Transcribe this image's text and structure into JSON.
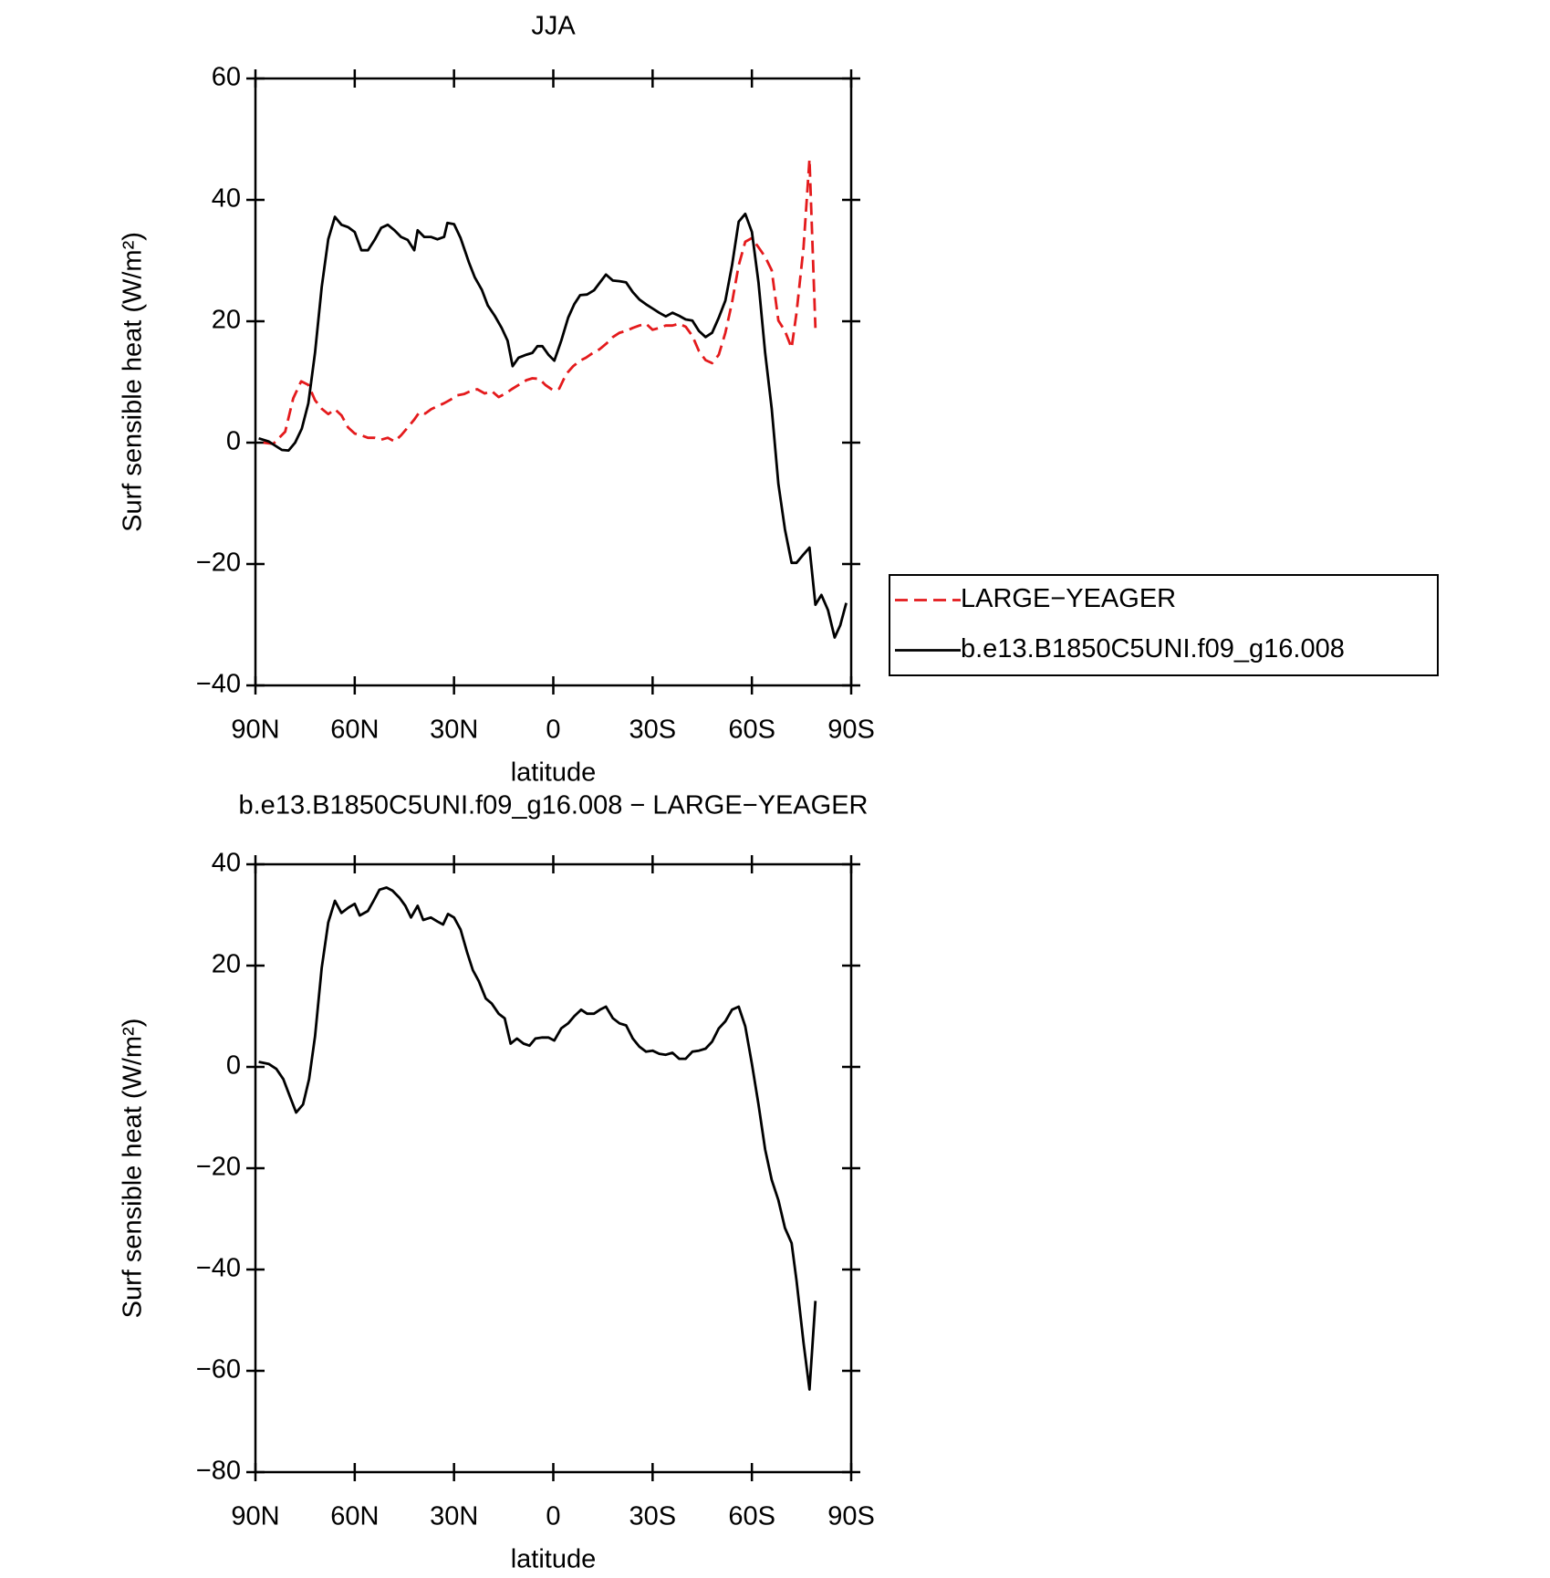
{
  "chart_data": [
    {
      "type": "line",
      "title": "JJA",
      "xlabel": "latitude",
      "ylabel": "Surf sensible heat (W/m²)",
      "xlim": [
        90,
        -90
      ],
      "xticks": [
        {
          "value": 90,
          "label": "90N"
        },
        {
          "value": 60,
          "label": "60N"
        },
        {
          "value": 30,
          "label": "30N"
        },
        0,
        {
          "value": -30,
          "label": "30S"
        },
        {
          "value": -60,
          "label": "60S"
        },
        {
          "value": -90,
          "label": "90S"
        }
      ],
      "ylim": [
        -40,
        60
      ],
      "yticks": [
        {
          "value": -40,
          "label": "−40"
        },
        {
          "value": -20,
          "label": "−20"
        },
        0,
        20,
        40,
        60
      ],
      "legend": "right",
      "series": [
        {
          "name": "LARGE−YEAGER",
          "color": "#e41a1c",
          "line_style": "dashed",
          "x": [
            87.6,
            84.6,
            81,
            78.6,
            76.2,
            74,
            72,
            70,
            68,
            66,
            64,
            62,
            60,
            58,
            56,
            54,
            52,
            50,
            48,
            46,
            44,
            42,
            40.5,
            38.7,
            36.9,
            35,
            33,
            31,
            29,
            27,
            25,
            23,
            20.7,
            18.6,
            16.5,
            14.4,
            12.6,
            10.5,
            8.1,
            6.3,
            4.2,
            2.4,
            0,
            -1.8,
            -3.9,
            -6,
            -8.1,
            -9.9,
            -12,
            -14,
            -16,
            -18,
            -20,
            -22,
            -24,
            -26,
            -28,
            -30,
            -32,
            -34,
            -36,
            -38,
            -40,
            -42,
            -44,
            -46,
            -48,
            -50,
            -52,
            -54,
            -56,
            -58,
            -60,
            -62,
            -64,
            -66,
            -68,
            -70,
            -72,
            -73.5,
            -75.6,
            -77.4,
            -79.2
          ],
          "values": [
            0,
            -0.2,
            1.8,
            7.3,
            10.1,
            9.5,
            7,
            5.6,
            4.7,
            5.5,
            4.5,
            2.5,
            1.5,
            1.2,
            0.8,
            0.8,
            0.5,
            0.8,
            0.2,
            1.2,
            2.5,
            3.8,
            5,
            4.8,
            5.5,
            6,
            6.5,
            7.1,
            7.8,
            8,
            8.5,
            8.8,
            8.1,
            8.5,
            7.5,
            8.1,
            8.8,
            9.5,
            10.3,
            10.6,
            10.5,
            9.5,
            8.6,
            8.9,
            11.3,
            12.6,
            13.5,
            14,
            14.8,
            15.4,
            16.3,
            17.4,
            18.1,
            18.4,
            18.9,
            19.3,
            19.6,
            18.6,
            18.9,
            19.3,
            19.3,
            19.6,
            19.1,
            17.6,
            15.1,
            13.6,
            13.1,
            14.5,
            18.1,
            23.1,
            29.2,
            33.1,
            33.7,
            32.2,
            30.6,
            28.4,
            20.1,
            18.4,
            15.6,
            21.4,
            32.2,
            46.7,
            18.9
          ]
        },
        {
          "name": "b.e13.B1850C5UNI.f09_g16.008",
          "color": "#000000",
          "line_style": "solid",
          "x": [
            89,
            86,
            82,
            80,
            78,
            76,
            74,
            72,
            70,
            68,
            66,
            64,
            62,
            60,
            58,
            56,
            54,
            52,
            50,
            48,
            46,
            44,
            42,
            41,
            39,
            37,
            35,
            33,
            32,
            30,
            28,
            25.5,
            23.7,
            21.6,
            19.8,
            17.7,
            15.6,
            13.8,
            12.3,
            10.5,
            8.1,
            6.3,
            4.8,
            3.3,
            1.5,
            -0.3,
            -2.4,
            -4.5,
            -6.3,
            -8.1,
            -10.2,
            -12.3,
            -14.1,
            -15.9,
            -18,
            -20,
            -22,
            -24,
            -26,
            -28,
            -30,
            -32,
            -34,
            -36,
            -38,
            -40,
            -42,
            -44,
            -46,
            -48,
            -50,
            -52,
            -54,
            -56,
            -58,
            -60,
            -62,
            -64,
            -66,
            -68,
            -70,
            -72,
            -73.5,
            -75.6,
            -77.4,
            -79.2,
            -81,
            -83,
            -85,
            -86.7,
            -88.5
          ],
          "values": [
            0.7,
            0.2,
            -1.2,
            -1.3,
            0,
            2.3,
            6.5,
            14.8,
            25.6,
            33.5,
            37.2,
            35.9,
            35.5,
            34.7,
            31.7,
            31.7,
            33.4,
            35.4,
            35.9,
            35,
            33.9,
            33.4,
            31.7,
            35,
            33.9,
            33.9,
            33.5,
            33.9,
            36.2,
            36,
            33.7,
            29.7,
            27.2,
            25.2,
            22.6,
            20.9,
            18.9,
            16.8,
            12.6,
            14,
            14.5,
            14.8,
            15.9,
            15.9,
            14.5,
            13.5,
            16.8,
            20.6,
            22.8,
            24.3,
            24.4,
            25.1,
            26.4,
            27.7,
            26.7,
            26.6,
            26.4,
            24.8,
            23.6,
            22.8,
            22.1,
            21.4,
            20.8,
            21.4,
            20.9,
            20.3,
            20.1,
            18.4,
            17.4,
            18.1,
            20.6,
            23.4,
            29.2,
            36.4,
            37.7,
            34.7,
            26.4,
            14.8,
            5.6,
            -6.8,
            -14.3,
            -19.8,
            -19.8,
            -18.4,
            -17.3,
            -26.7,
            -25.1,
            -27.6,
            -32.1,
            -30.1,
            -26.4
          ]
        }
      ]
    },
    {
      "type": "line",
      "title": "b.e13.B1850C5UNI.f09_g16.008 − LARGE−YEAGER",
      "xlabel": "latitude",
      "ylabel": "Surf sensible heat (W/m²)",
      "xlim": [
        90,
        -90
      ],
      "xticks": [
        {
          "value": 90,
          "label": "90N"
        },
        {
          "value": 60,
          "label": "60N"
        },
        {
          "value": 30,
          "label": "30N"
        },
        0,
        {
          "value": -30,
          "label": "30S"
        },
        {
          "value": -60,
          "label": "60S"
        },
        {
          "value": -90,
          "label": "90S"
        }
      ],
      "ylim": [
        -80,
        40
      ],
      "yticks": [
        {
          "value": -80,
          "label": "−80"
        },
        {
          "value": -60,
          "label": "−60"
        },
        {
          "value": -40,
          "label": "−40"
        },
        {
          "value": -20,
          "label": "−20"
        },
        0,
        20,
        40
      ],
      "series": [
        {
          "color": "#000000",
          "line_style": "solid",
          "x": [
            89,
            86,
            83.7,
            81.6,
            79.5,
            77.7,
            75.6,
            73.8,
            72,
            70,
            68,
            66,
            64,
            62,
            60,
            58.5,
            56,
            54.3,
            52.5,
            50.4,
            48.6,
            46.5,
            44.7,
            43,
            41,
            39.3,
            37,
            35,
            33.3,
            31.8,
            30,
            28,
            26,
            24.3,
            22.5,
            20.4,
            18.6,
            16.5,
            14.7,
            12.9,
            11,
            9,
            7.2,
            5.4,
            3.3,
            1.5,
            -0.3,
            -2.4,
            -4.5,
            -6.3,
            -8.4,
            -10.2,
            -12.3,
            -14.1,
            -15.9,
            -18,
            -20,
            -22,
            -24,
            -26,
            -28,
            -30,
            -32,
            -34,
            -36,
            -38,
            -40,
            -42,
            -44,
            -46,
            -48,
            -50,
            -52,
            -54,
            -56,
            -58,
            -60,
            -62,
            -64,
            -66,
            -68,
            -70,
            -72,
            -73.5,
            -75.6,
            -77.4,
            -79.2
          ],
          "values": [
            1,
            0.6,
            -0.4,
            -2.4,
            -6,
            -9,
            -7.4,
            -2.4,
            6,
            19.5,
            28.5,
            32.8,
            30.4,
            31.4,
            32.2,
            29.9,
            30.8,
            32.8,
            35,
            35.4,
            34.8,
            33.4,
            31.8,
            29.5,
            31.8,
            29,
            29.5,
            28.7,
            28.1,
            30.2,
            29.5,
            27.1,
            22.5,
            19.1,
            16.9,
            13.5,
            12.5,
            10.5,
            9.6,
            4.6,
            5.6,
            4.6,
            4.2,
            5.6,
            5.8,
            5.8,
            5.2,
            7.6,
            8.6,
            10,
            11.3,
            10.5,
            10.5,
            11.3,
            11.9,
            9.6,
            8.6,
            8.2,
            5.6,
            4,
            3,
            3.2,
            2.6,
            2.4,
            2.8,
            1.6,
            1.6,
            3,
            3.2,
            3.6,
            5,
            7.6,
            9,
            11.3,
            11.9,
            8,
            0.6,
            -7.4,
            -16.3,
            -22.3,
            -26.3,
            -31.8,
            -34.8,
            -42.2,
            -54.5,
            -63.7,
            -46.2
          ]
        }
      ]
    }
  ]
}
